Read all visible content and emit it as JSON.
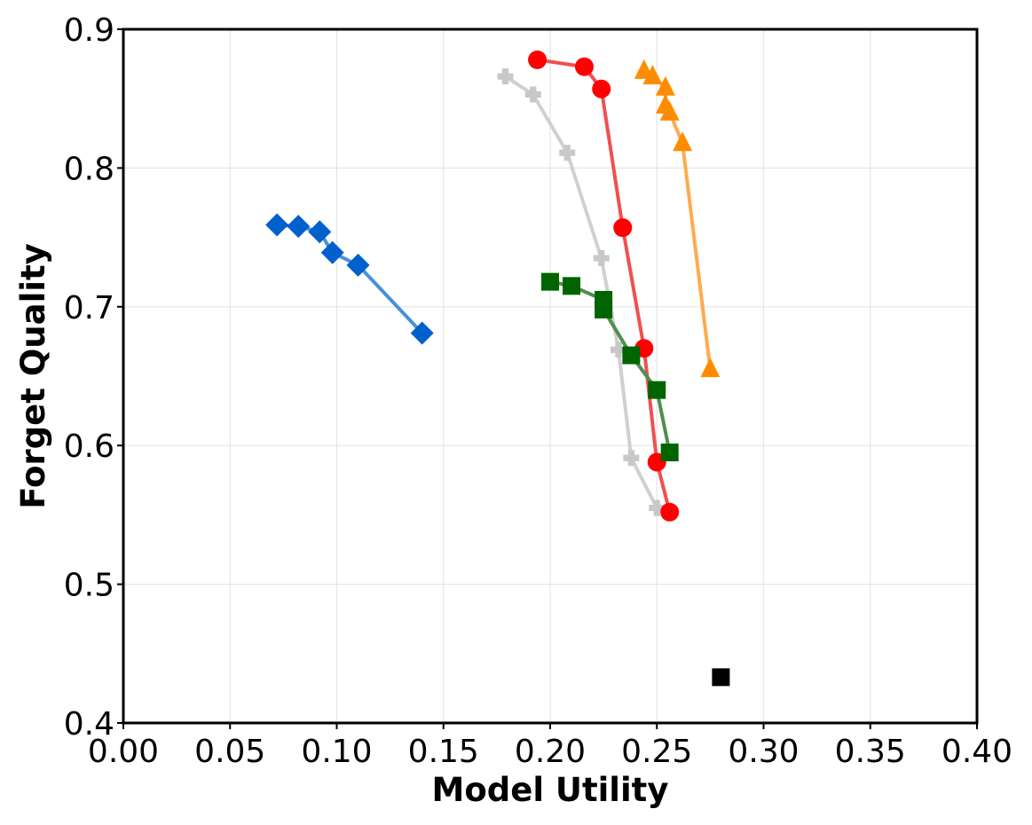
{
  "chart_data": {
    "type": "scatter",
    "title": "",
    "xlabel": "Model Utility",
    "ylabel": "Forget Quality",
    "xlim": [
      0.0,
      0.4
    ],
    "ylim": [
      0.4,
      0.9
    ],
    "xticks": [
      0.0,
      0.05,
      0.1,
      0.15,
      0.2,
      0.25,
      0.3,
      0.35,
      0.4
    ],
    "yticks": [
      0.4,
      0.5,
      0.6,
      0.7,
      0.8,
      0.9
    ],
    "xtick_labels": [
      "0.00",
      "0.05",
      "0.10",
      "0.15",
      "0.20",
      "0.25",
      "0.30",
      "0.35",
      "0.40"
    ],
    "ytick_labels": [
      "0.4",
      "0.5",
      "0.6",
      "0.7",
      "0.8",
      "0.9"
    ],
    "grid": true,
    "legend": "none",
    "series": [
      {
        "name": "blue-diamond",
        "color": "#0060cc",
        "line_color": "#4a90d9",
        "marker": "diamond",
        "x": [
          0.072,
          0.082,
          0.092,
          0.098,
          0.11,
          0.14
        ],
        "y": [
          0.759,
          0.758,
          0.754,
          0.739,
          0.73,
          0.681
        ]
      },
      {
        "name": "gray-plus",
        "color": "#c8c8c8",
        "line_color": "#d0d0d0",
        "marker": "plus",
        "x": [
          0.179,
          0.192,
          0.208,
          0.224,
          0.232,
          0.238,
          0.25
        ],
        "y": [
          0.866,
          0.853,
          0.811,
          0.735,
          0.669,
          0.591,
          0.555
        ]
      },
      {
        "name": "red-circle",
        "color": "#ff0000",
        "line_color": "#f05050",
        "marker": "circle",
        "x": [
          0.194,
          0.216,
          0.224,
          0.234,
          0.244,
          0.25,
          0.256
        ],
        "y": [
          0.878,
          0.873,
          0.857,
          0.757,
          0.67,
          0.588,
          0.552
        ]
      },
      {
        "name": "green-square",
        "color": "#006400",
        "line_color": "#4f8f4f",
        "marker": "square",
        "x": [
          0.2,
          0.21,
          0.225,
          0.225,
          0.238,
          0.25,
          0.256
        ],
        "y": [
          0.718,
          0.715,
          0.705,
          0.698,
          0.665,
          0.64,
          0.595
        ]
      },
      {
        "name": "orange-triangle",
        "color": "#ff8c00",
        "line_color": "#ffaa50",
        "marker": "triangle",
        "x": [
          0.244,
          0.248,
          0.254,
          0.254,
          0.256,
          0.262,
          0.275
        ],
        "y": [
          0.87,
          0.866,
          0.858,
          0.845,
          0.84,
          0.818,
          0.655
        ]
      },
      {
        "name": "black-square",
        "color": "#000000",
        "line_color": "none",
        "marker": "square",
        "x": [
          0.28
        ],
        "y": [
          0.433
        ]
      }
    ]
  }
}
